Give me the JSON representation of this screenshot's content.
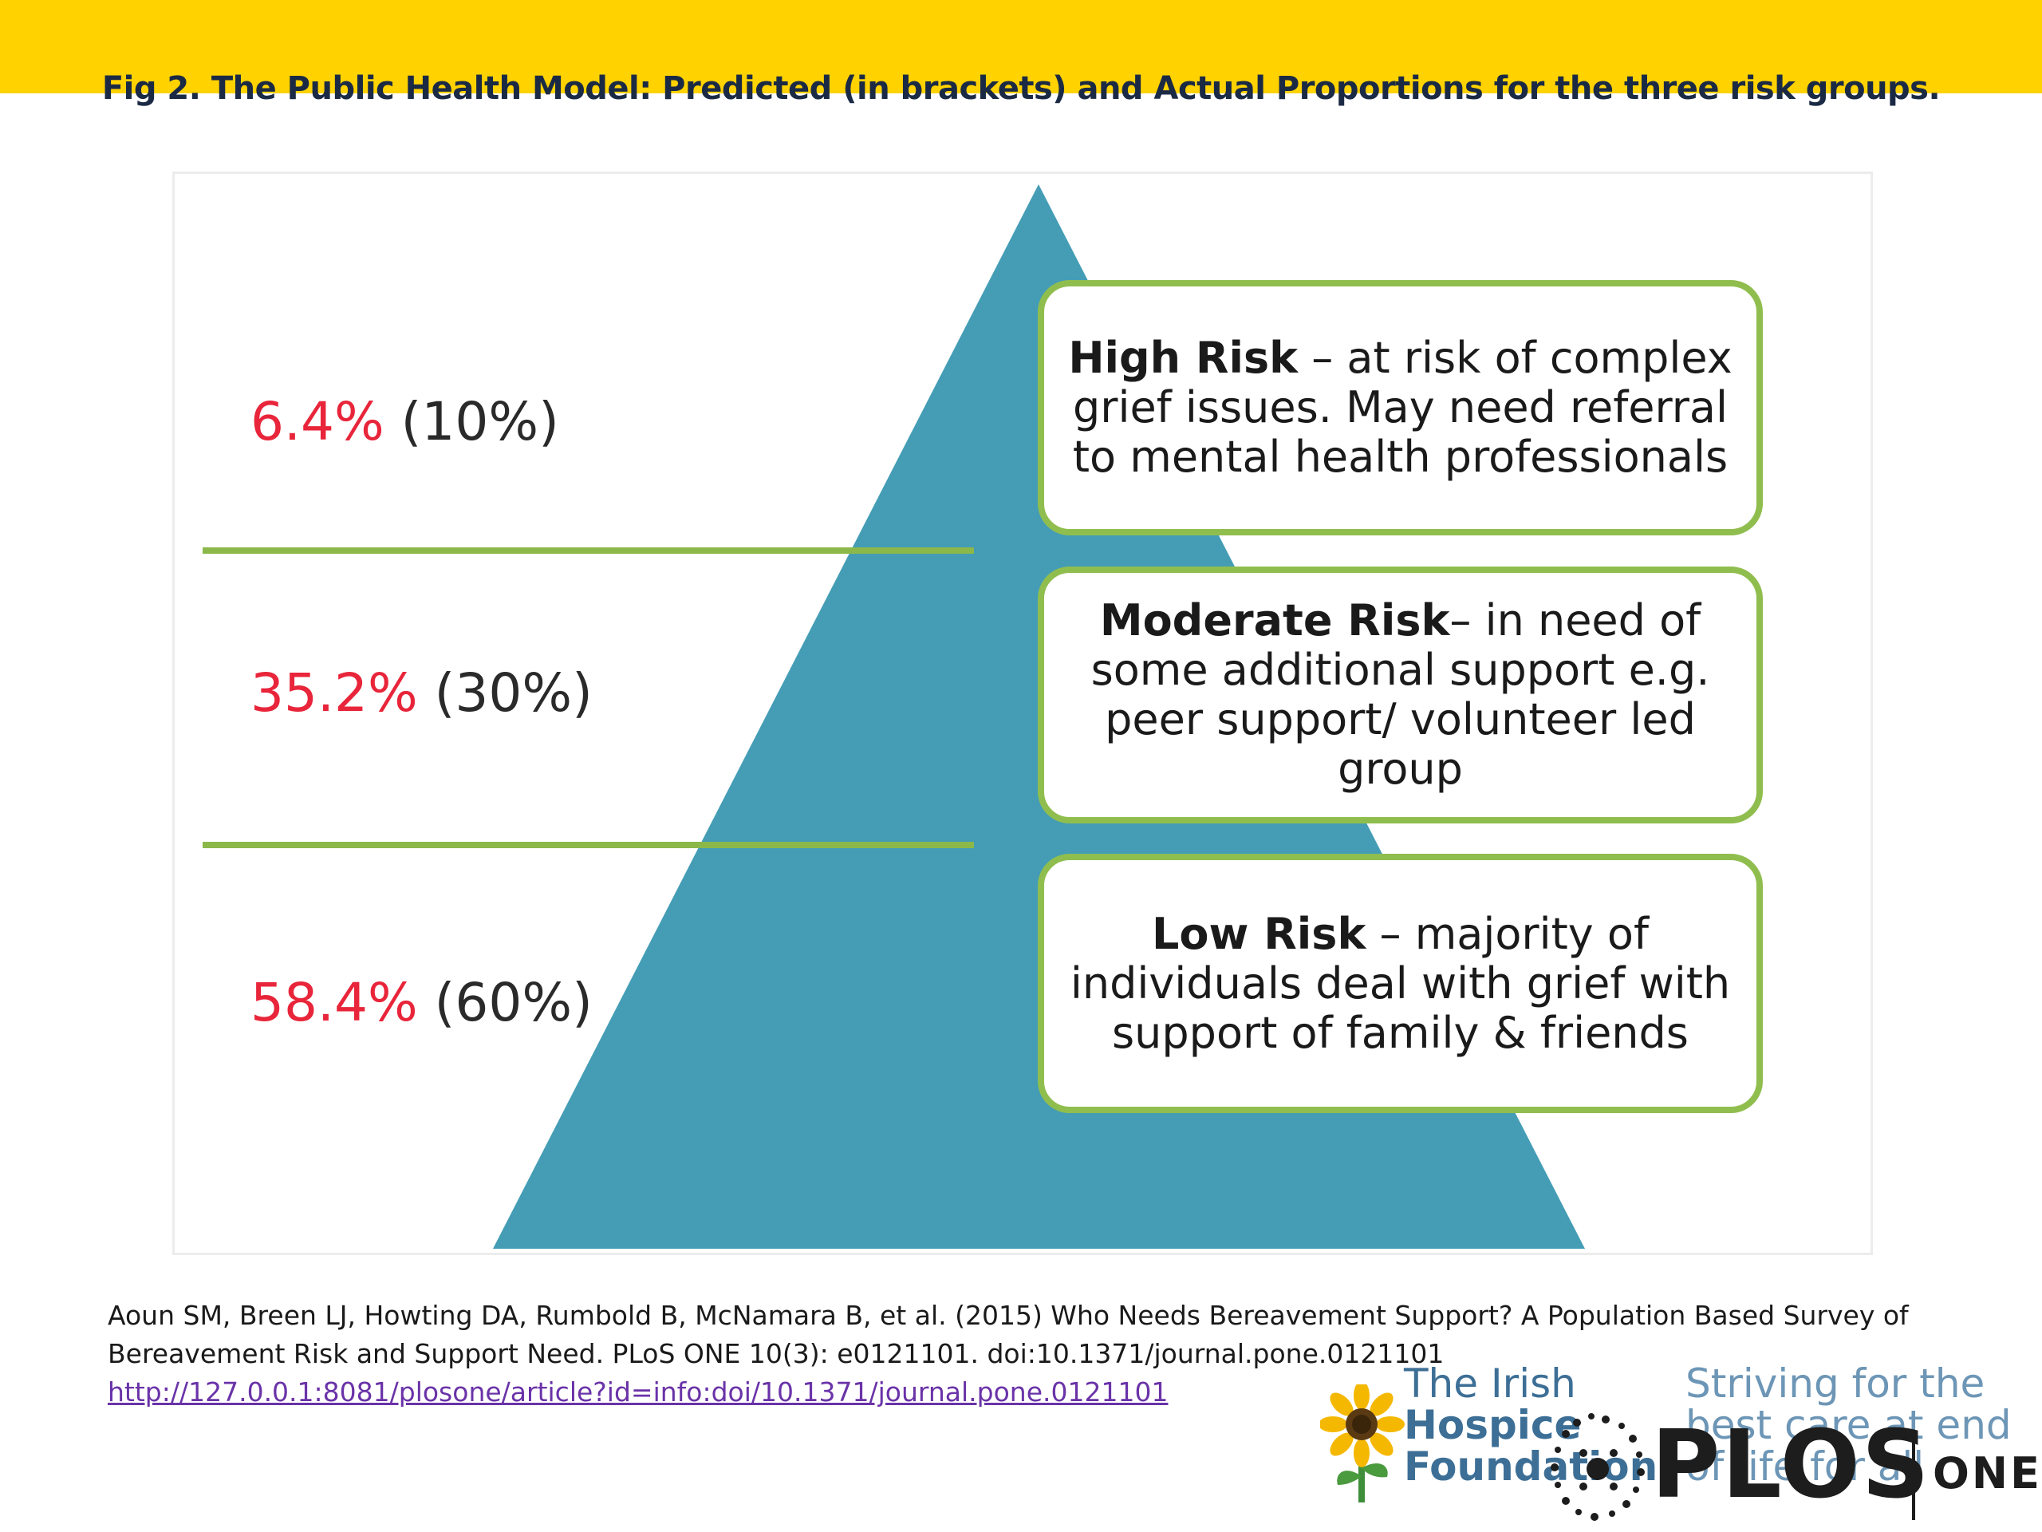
{
  "caption": "Fig 2. The Public Health Model: Predicted (in brackets) and Actual Proportions for the three risk groups.",
  "colors": {
    "banner": "#ffd200",
    "pyramid": "#449db5",
    "divider": "#8cb84a",
    "box_border": "#90be4e",
    "actual_text": "#e8253a",
    "link": "#6a33a8"
  },
  "tiers": [
    {
      "actual": "6.4%",
      "predicted": "(10%)",
      "title": "High Risk",
      "description": " – at risk of complex grief issues. May need referral to mental health professionals"
    },
    {
      "actual": "35.2%",
      "predicted": "(30%)",
      "title": "Moderate Risk",
      "description": "– in need of some additional support e.g. peer support/ volunteer led group"
    },
    {
      "actual": "58.4%",
      "predicted": "(60%)",
      "title": "Low Risk",
      "description": " – majority of individuals deal with grief with support of family & friends"
    }
  ],
  "citation": {
    "text": "Aoun SM, Breen LJ, Howting DA, Rumbold B, McNamara B, et al. (2015) Who Needs Bereavement Support? A Population Based Survey of Bereavement Risk and Support Need. PLoS ONE 10(3): e0121101. doi:10.1371/journal.pone.0121101",
    "url": "http://127.0.0.1:8081/plosone/article?id=info:doi/10.1371/journal.pone.0121101"
  },
  "logos": {
    "ihf_lines": [
      "The Irish",
      "Hospice",
      "Foundation"
    ],
    "ihf_tagline": [
      "Striving for the",
      "best care at end",
      "of life for all"
    ],
    "plos": "PLOS",
    "plos_one": "ONE"
  }
}
